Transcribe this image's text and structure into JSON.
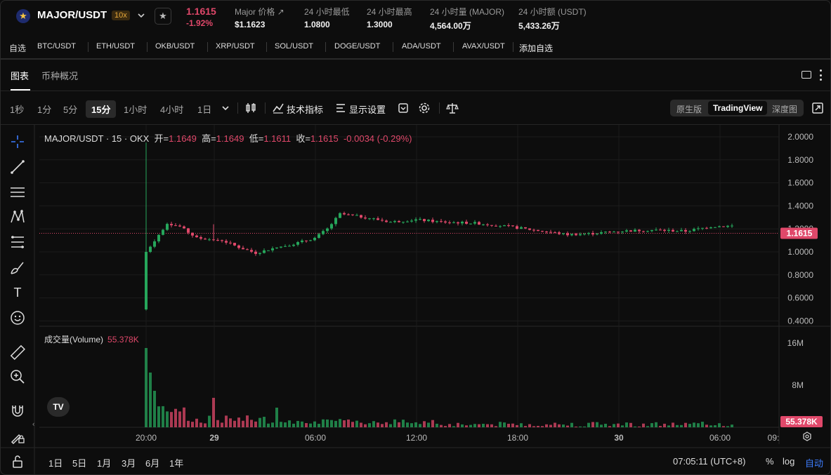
{
  "header": {
    "pair": "MAJOR/USDT",
    "leverage": "10x",
    "price": "1.1615",
    "change": "-1.92%",
    "stats": [
      {
        "label": "Major 价格 ↗",
        "value": "$1.1623"
      },
      {
        "label": "24 小时最低",
        "value": "1.0800"
      },
      {
        "label": "24 小时最高",
        "value": "1.3000"
      },
      {
        "label": "24 小时量 (MAJOR)",
        "value": "4,564.00万"
      },
      {
        "label": "24 小时额 (USDT)",
        "value": "5,433.26万"
      }
    ]
  },
  "favorites": {
    "label": "自选",
    "items": [
      "BTC/USDT",
      "ETH/USDT",
      "OKB/USDT",
      "XRP/USDT",
      "SOL/USDT",
      "DOGE/USDT",
      "ADA/USDT",
      "AVAX/USDT"
    ],
    "add": "添加自选"
  },
  "tabs": [
    "图表",
    "币种概况"
  ],
  "intervals": [
    "1秒",
    "1分",
    "5分",
    "15分",
    "1小时",
    "4小时",
    "1日"
  ],
  "toolbar": {
    "indicators": "技术指标",
    "display": "显示设置"
  },
  "views": [
    "原生版",
    "TradingView",
    "深度图"
  ],
  "legend": {
    "title": "MAJOR/USDT · 15 · OKX",
    "open_k": "开=",
    "open": "1.1649",
    "high_k": "高=",
    "high": "1.1649",
    "low_k": "低=",
    "low": "1.1611",
    "close_k": "收=",
    "close": "1.1615",
    "chg": "-0.0034 (-0.29%)"
  },
  "volume_legend": {
    "label": "成交量(Volume)",
    "value": "55.378K"
  },
  "price_axis": [
    "2.0000",
    "1.8000",
    "1.6000",
    "1.4000",
    "1.2000",
    "1.0000",
    "0.8000",
    "0.6000",
    "0.4000"
  ],
  "price_tag": "1.1615",
  "volume_axis": [
    "16M",
    "8M"
  ],
  "volume_tag": "55.378K",
  "time_axis": [
    "20:00",
    "29",
    "06:00",
    "12:00",
    "18:00",
    "30",
    "06:00",
    "09:"
  ],
  "ranges": [
    "1日",
    "5日",
    "1月",
    "3月",
    "6月",
    "1年"
  ],
  "clock": "07:05:11 (UTC+8)",
  "bottom_options": [
    "%",
    "log",
    "自动"
  ],
  "colors": {
    "up": "#26a65b",
    "down": "#e0486a",
    "accent": "#3d7dff"
  }
}
